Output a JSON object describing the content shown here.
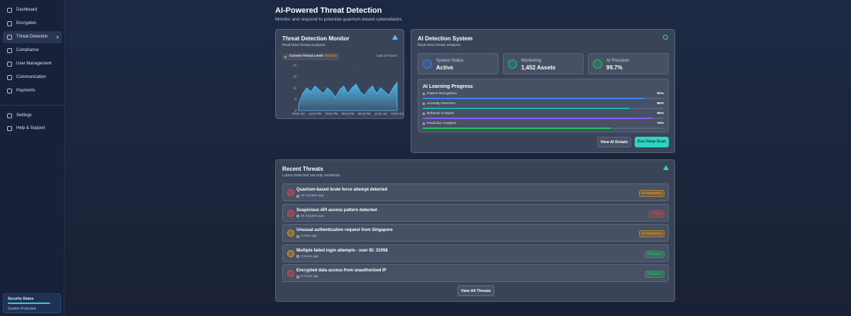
{
  "sidebar": {
    "nav": [
      "Dashboard",
      "Encryption",
      "Threat Detection",
      "Compliance",
      "User Management",
      "Communication",
      "Payments"
    ],
    "nav_bottom": [
      "Settings",
      "Help & Support"
    ],
    "status": {
      "title": "Security Status",
      "text": "System Protected"
    }
  },
  "header": {
    "title": "AI-Powered Threat Detection",
    "subtitle": "Monitor and respond to potential quantum-based cyberattacks"
  },
  "monitor": {
    "title": "Threat Detection Monitor",
    "subtitle": "Real-time threat analysis",
    "level_label": "Current Threat Level:",
    "level": "Medium",
    "range": "Last 24 hours"
  },
  "chart_data": {
    "type": "area",
    "color": "#4fc3f7",
    "categories": [
      "09:52 AM",
      null,
      null,
      null,
      "12:52 PM",
      null,
      null,
      null,
      "03:52 PM",
      null,
      null,
      null,
      "06:52 PM",
      null,
      null,
      null,
      "09:52 PM",
      null,
      null,
      null,
      "12:52 AM",
      null,
      null,
      null,
      "09:52 AM"
    ],
    "values": [
      3,
      9,
      12,
      10,
      13,
      11,
      9,
      12,
      10,
      7,
      11,
      13,
      9,
      12,
      14,
      10,
      8,
      11,
      13,
      9,
      12,
      10,
      8,
      12,
      15
    ],
    "ylim": [
      0,
      24
    ],
    "yticks": [
      0,
      6,
      12,
      18,
      24
    ],
    "grid": true
  },
  "ai": {
    "title": "AI Detection System",
    "subtitle": "Real-time threat analysis",
    "stats": [
      {
        "label": "System Status",
        "value": "Active",
        "color": "#3b82f6"
      },
      {
        "label": "Monitoring",
        "value": "1,452 Assets",
        "color": "#14b8a6"
      },
      {
        "label": "AI Precision",
        "value": "99.7%",
        "color": "#22c55e"
      }
    ],
    "learning": {
      "title": "AI Learning Progress",
      "items": [
        {
          "label": "Pattern Recognition",
          "value": 92,
          "value_label": "92%",
          "color": "#3b82f6"
        },
        {
          "label": "Anomaly Detection",
          "value": 86,
          "value_label": "86%",
          "color": "#14b8a6"
        },
        {
          "label": "Behavior Analysis",
          "value": 95,
          "value_label": "95%",
          "color": "#8b5cf6"
        },
        {
          "label": "Predictive Analytics",
          "value": 78,
          "value_label": "78%",
          "color": "#22c55e"
        }
      ]
    },
    "buttons": [
      "View AI Details",
      "Run Deep Scan"
    ]
  },
  "threats": {
    "title": "Recent Threats",
    "subtitle": "Latest detected security incidents",
    "rows": [
      {
        "title": "Quantum-based brute force attempt detected",
        "time": "10 minutes ago",
        "status": "Investigating",
        "severity": "#ef4444",
        "status_color": "#f59e0b"
      },
      {
        "title": "Suspicious API access pattern detected",
        "time": "30 minutes ago",
        "status": "Active",
        "severity": "#ef4444",
        "status_color": "#ef4444"
      },
      {
        "title": "Unusual authentication request from Singapore",
        "time": "1 hour ago",
        "status": "Investigating",
        "severity": "#f59e0b",
        "status_color": "#f59e0b"
      },
      {
        "title": "Multiple failed login attempts - user ID: 31058",
        "time": "3 hours ago",
        "status": "Mitigated",
        "severity": "#f59e0b",
        "status_color": "#22c55e"
      },
      {
        "title": "Encrypted data access from unauthorized IP",
        "time": "5 hours ago",
        "status": "Mitigated",
        "severity": "#ef4444",
        "status_color": "#22c55e"
      }
    ],
    "button": "View All Threats"
  }
}
